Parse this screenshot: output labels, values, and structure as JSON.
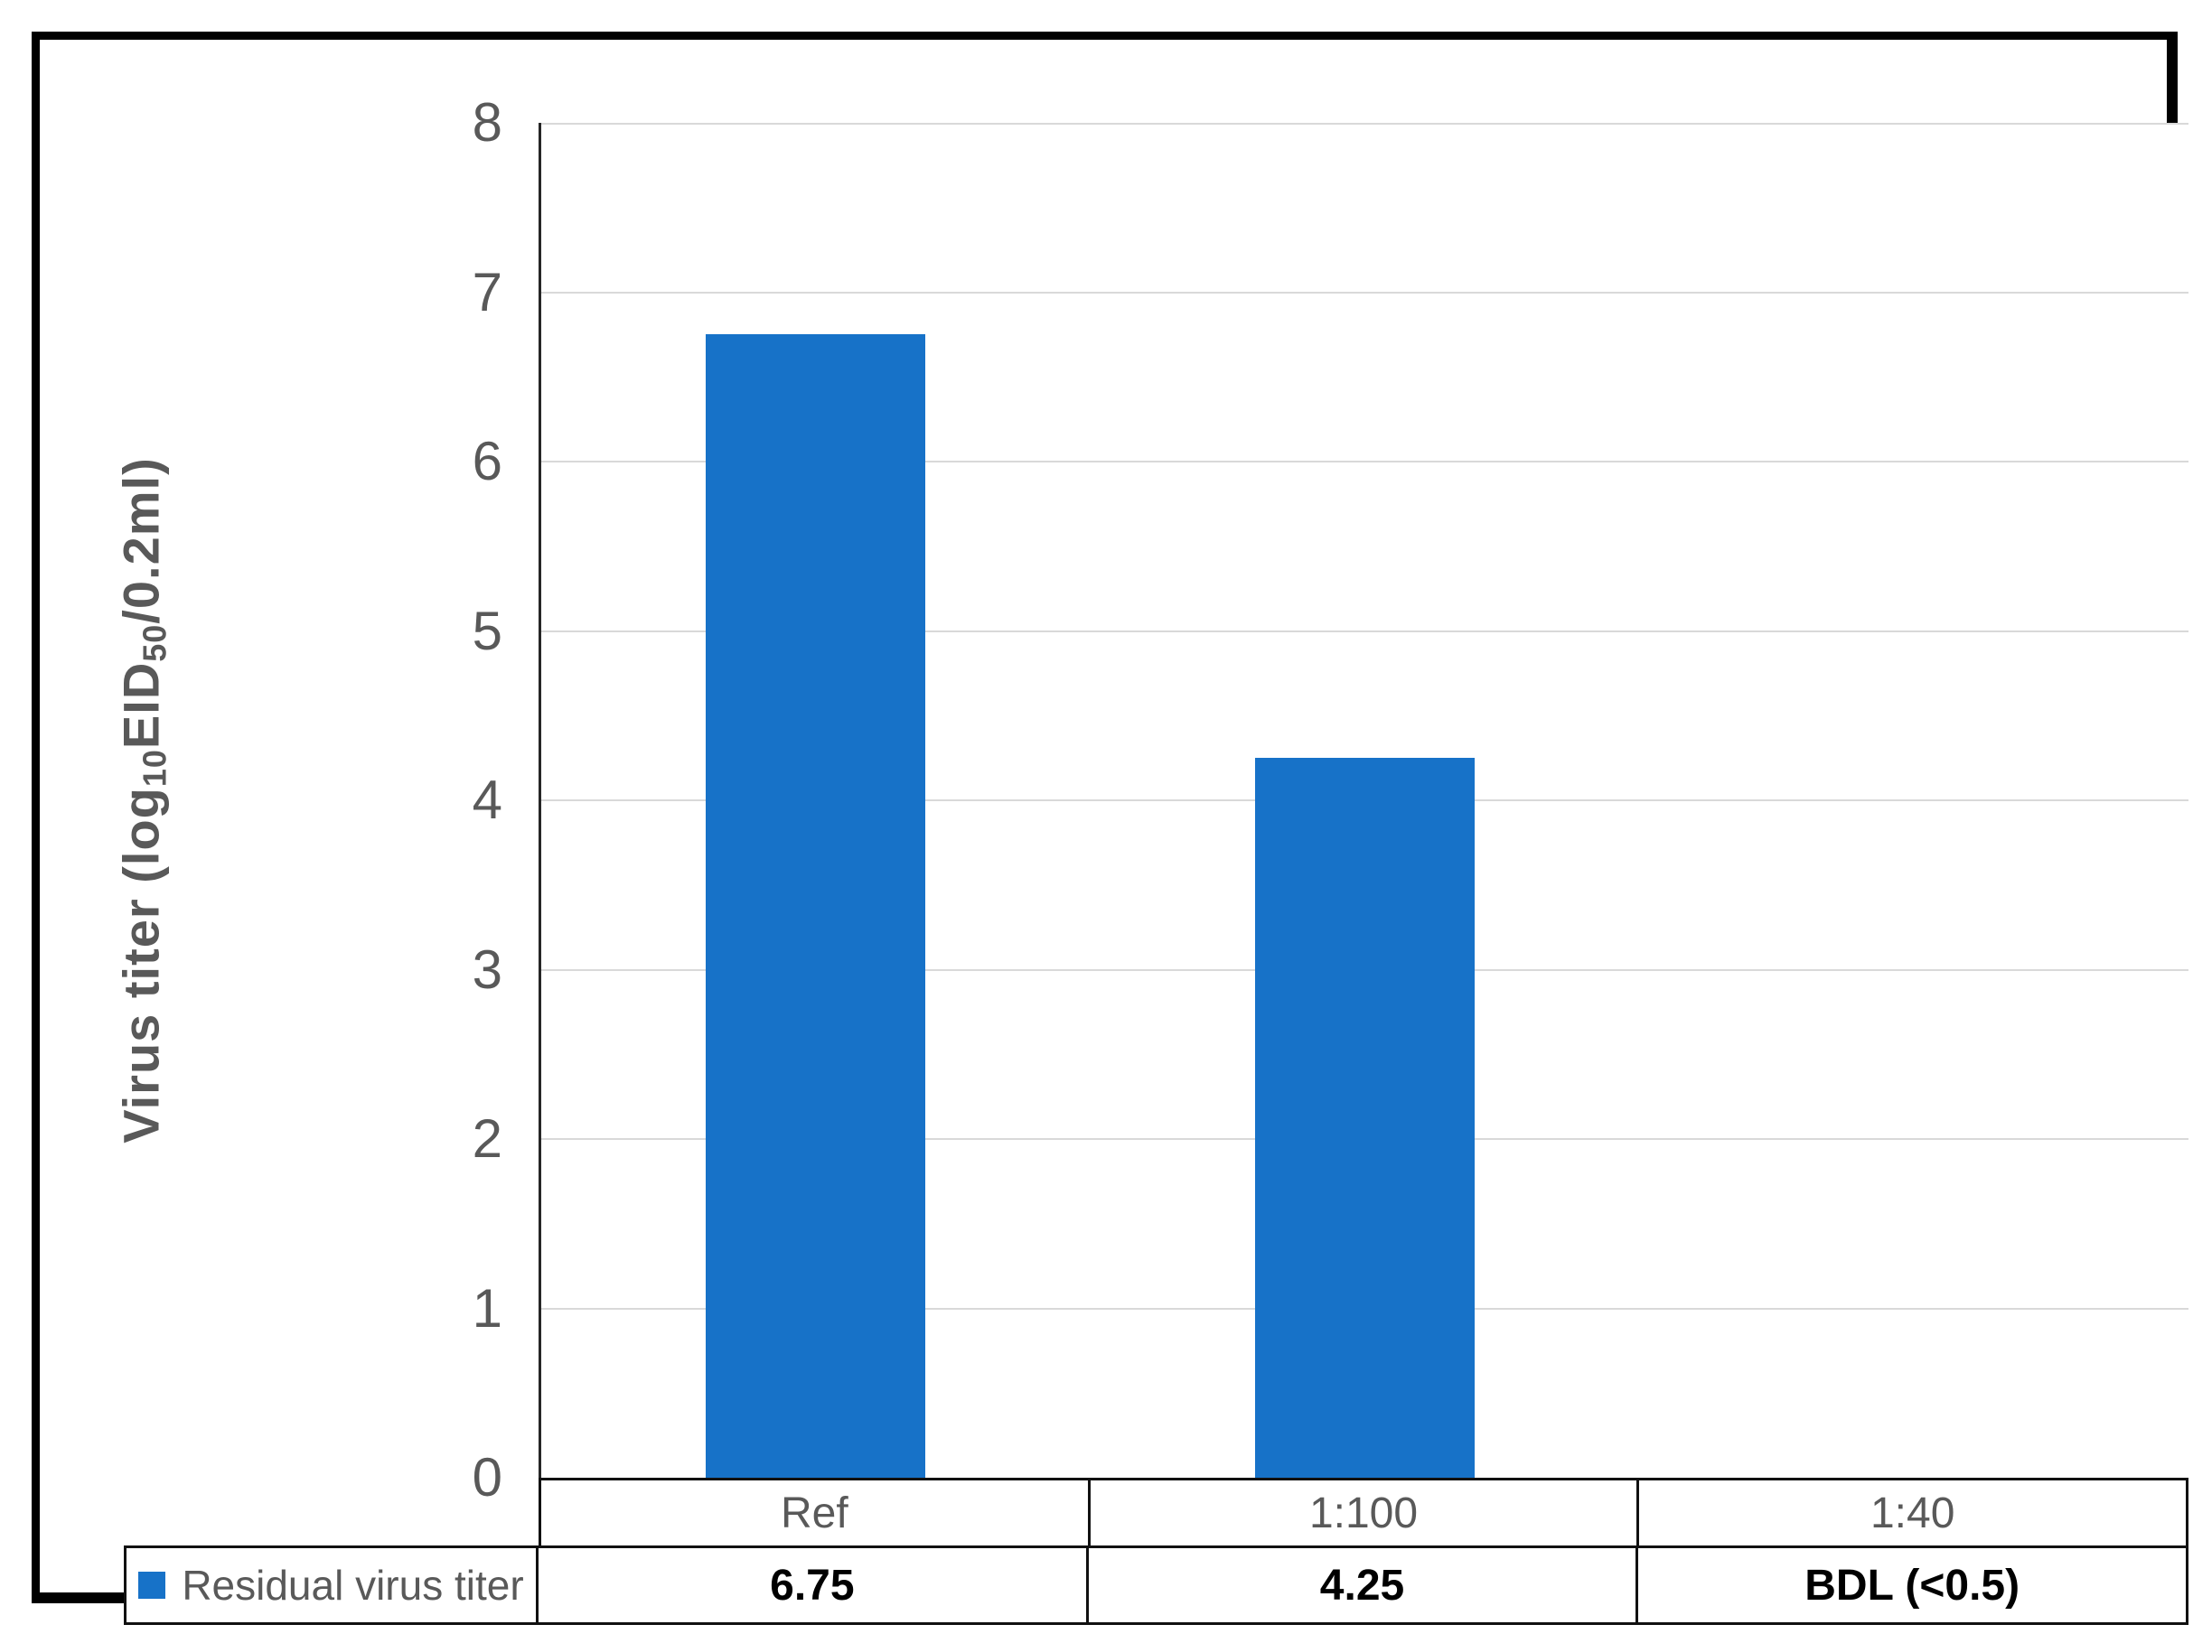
{
  "chart_data": {
    "type": "bar",
    "title": "",
    "categories": [
      "Ref",
      "1:100",
      "1:40"
    ],
    "series": [
      {
        "name": "Residual virus titer",
        "values": [
          6.75,
          4.25,
          null
        ],
        "value_labels": [
          "6.75",
          "4.25",
          "BDL (<0.5)"
        ]
      }
    ],
    "ylabel": "Virus titer (log10EID50/0.2ml)",
    "ylabel_parts": {
      "pre": "Virus titer (log",
      "sub1": "10",
      "mid": "EID",
      "sub2": "50",
      "post": "/0.2ml)"
    },
    "yticks": [
      0,
      1,
      2,
      3,
      4,
      5,
      6,
      7,
      8
    ],
    "ylim": [
      0,
      8
    ],
    "grid": true,
    "legend_position": "bottom-table-left",
    "colors": {
      "bar": "#1772c8",
      "axis_text": "#595959",
      "value_text": "#000000",
      "gridline": "#d9d9d9",
      "axis_line": "#262626",
      "table_border": "#111111",
      "frame_border": "#000000"
    }
  }
}
